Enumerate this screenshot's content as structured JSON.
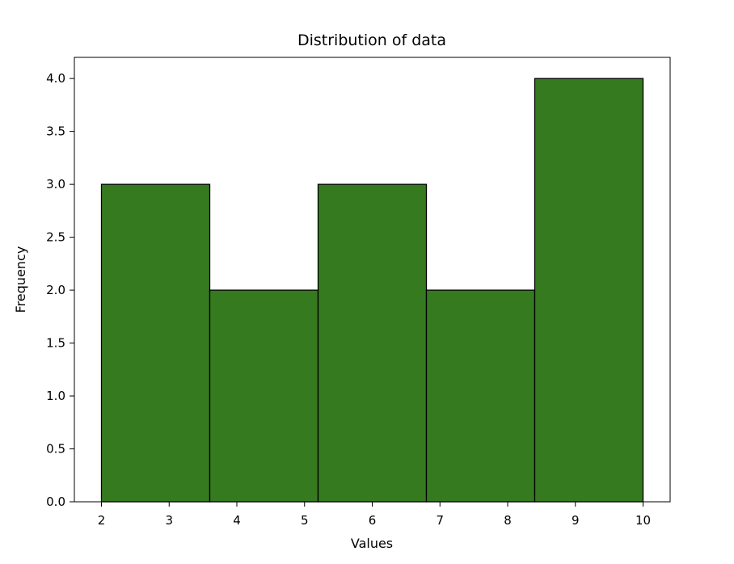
{
  "chart_data": {
    "type": "bar",
    "title": "Distribution of data",
    "xlabel": "Values",
    "ylabel": "Frequency",
    "bins": [
      {
        "start": 2.0,
        "end": 3.6,
        "count": 3
      },
      {
        "start": 3.6,
        "end": 5.2,
        "count": 2
      },
      {
        "start": 5.2,
        "end": 6.8,
        "count": 3
      },
      {
        "start": 6.8,
        "end": 8.4,
        "count": 2
      },
      {
        "start": 8.4,
        "end": 10.0,
        "count": 4
      }
    ],
    "xlim": [
      1.6,
      10.4
    ],
    "ylim": [
      0,
      4.2
    ],
    "xticks": [
      "2",
      "3",
      "4",
      "5",
      "6",
      "7",
      "8",
      "9",
      "10"
    ],
    "yticks": [
      "0.0",
      "0.5",
      "1.0",
      "1.5",
      "2.0",
      "2.5",
      "3.0",
      "3.5",
      "4.0"
    ],
    "bar_color": "#367a20",
    "edge_color": "#000000",
    "grid": false
  }
}
